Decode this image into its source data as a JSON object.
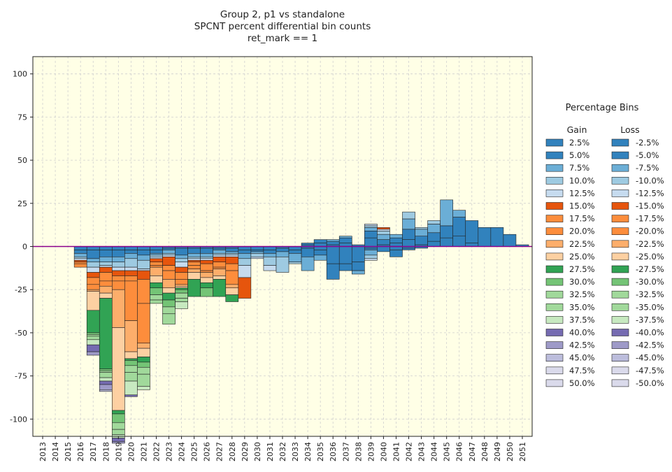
{
  "chart_data": {
    "type": "bar",
    "stacked": true,
    "title": [
      "Group 2,  p1 vs standalone",
      "SPCNT percent differential bin counts",
      "ret_mark == 1"
    ],
    "xlabel": "",
    "ylabel": "",
    "ylim": [
      -110,
      110
    ],
    "yticks": [
      100,
      75,
      50,
      25,
      0,
      -25,
      -50,
      -75,
      -100
    ],
    "grid": true,
    "legend_position": "right",
    "categories": [
      "2013",
      "2014",
      "2015",
      "2016",
      "2017",
      "2018",
      "2019",
      "2020",
      "2021",
      "2022",
      "2023",
      "2024",
      "2025",
      "2026",
      "2027",
      "2028",
      "2029",
      "2030",
      "2031",
      "2032",
      "2033",
      "2034",
      "2035",
      "2036",
      "2037",
      "2038",
      "2039",
      "2040",
      "2041",
      "2042",
      "2043",
      "2044",
      "2045",
      "2046",
      "2047",
      "2048",
      "2049",
      "2050",
      "2051"
    ],
    "bins": [
      {
        "gain": "2.5%",
        "loss": "-2.5%",
        "color": "#3182bd"
      },
      {
        "gain": "5.0%",
        "loss": "-5.0%",
        "color": "#3182bd"
      },
      {
        "gain": "7.5%",
        "loss": "-7.5%",
        "color": "#6baed6"
      },
      {
        "gain": "10.0%",
        "loss": "-10.0%",
        "color": "#9ecae1"
      },
      {
        "gain": "12.5%",
        "loss": "-12.5%",
        "color": "#c6dbef"
      },
      {
        "gain": "15.0%",
        "loss": "-15.0%",
        "color": "#e6550d"
      },
      {
        "gain": "17.5%",
        "loss": "-17.5%",
        "color": "#fd8d3c"
      },
      {
        "gain": "20.0%",
        "loss": "-20.0%",
        "color": "#fd8d3c"
      },
      {
        "gain": "22.5%",
        "loss": "-22.5%",
        "color": "#fdae6b"
      },
      {
        "gain": "25.0%",
        "loss": "-25.0%",
        "color": "#fdd0a2"
      },
      {
        "gain": "27.5%",
        "loss": "-27.5%",
        "color": "#31a354"
      },
      {
        "gain": "30.0%",
        "loss": "-30.0%",
        "color": "#74c476"
      },
      {
        "gain": "32.5%",
        "loss": "-32.5%",
        "color": "#a1d99b"
      },
      {
        "gain": "35.0%",
        "loss": "-35.0%",
        "color": "#a1d99b"
      },
      {
        "gain": "37.5%",
        "loss": "-37.5%",
        "color": "#c7e9c0"
      },
      {
        "gain": "40.0%",
        "loss": "-40.0%",
        "color": "#756bb1"
      },
      {
        "gain": "42.5%",
        "loss": "-42.5%",
        "color": "#9e9ac8"
      },
      {
        "gain": "45.0%",
        "loss": "-45.0%",
        "color": "#bcbddc"
      },
      {
        "gain": "47.5%",
        "loss": "-47.5%",
        "color": "#dadaeb"
      },
      {
        "gain": "50.0%",
        "loss": "-50.0%",
        "color": "#dadaeb"
      }
    ],
    "positive": [
      [],
      [],
      [],
      [],
      [],
      [],
      [],
      [],
      [],
      [],
      [],
      [],
      [],
      [],
      [],
      [],
      [],
      [],
      [],
      [],
      [],
      [
        1,
        1
      ],
      [
        2,
        2
      ],
      [
        1,
        2,
        1
      ],
      [
        2,
        3,
        1
      ],
      [
        1
      ],
      [
        5,
        4,
        2,
        1,
        1
      ],
      [
        1,
        3,
        3,
        2,
        1,
        1
      ],
      [
        2,
        3,
        2
      ],
      [
        4,
        6,
        6,
        4
      ],
      [
        1,
        5,
        4,
        1
      ],
      [
        3,
        5,
        5,
        2
      ],
      [
        5,
        7,
        15
      ],
      [
        6,
        11,
        4
      ],
      [
        2,
        13
      ],
      [
        11
      ],
      [
        11
      ],
      [
        7
      ],
      [
        1
      ]
    ],
    "negative": [
      [],
      [],
      [],
      [
        2,
        2,
        2,
        1,
        1,
        1,
        1,
        2
      ],
      [
        2,
        5,
        2,
        3,
        3,
        3,
        4,
        3,
        1,
        11,
        13,
        1,
        1,
        2,
        3,
        4,
        2
      ],
      [
        2,
        4,
        3,
        2,
        1,
        3,
        5,
        3,
        4,
        3,
        41,
        1,
        1,
        3,
        2,
        2,
        3,
        1
      ],
      [
        2,
        4,
        3,
        3,
        2,
        3,
        3,
        5,
        22,
        48,
        2,
        5,
        4,
        3,
        2,
        2,
        1
      ],
      [
        2,
        2,
        3,
        5,
        2,
        3,
        3,
        23,
        18,
        4,
        1,
        3,
        4,
        5,
        8,
        1
      ],
      [
        2,
        3,
        3,
        5,
        1,
        5,
        14,
        23,
        3,
        5,
        3,
        3,
        4,
        7,
        2
      ],
      [
        2,
        2,
        1,
        1,
        1,
        2,
        2,
        1,
        5,
        4,
        3,
        4,
        3,
        2
      ],
      [
        1,
        1,
        2,
        1,
        1,
        5,
        3,
        5,
        5,
        3,
        4,
        4,
        4,
        6
      ],
      [
        1,
        4,
        2,
        2,
        3,
        3,
        4,
        3,
        1,
        1,
        1,
        2,
        3,
        2,
        4
      ],
      [
        1,
        3,
        2,
        1,
        1,
        1,
        2,
        2,
        2,
        4,
        10
      ],
      [
        1,
        3,
        2,
        1,
        1,
        2,
        4,
        1,
        3,
        3,
        3,
        5
      ],
      [
        1,
        1,
        2,
        1,
        1,
        3,
        3,
        1,
        4,
        2,
        10
      ],
      [
        1,
        2,
        1,
        1,
        1,
        4,
        4,
        8,
        2,
        4,
        4
      ],
      [
        2,
        2,
        3,
        4,
        7,
        12
      ],
      [
        2,
        1,
        1,
        2,
        1
      ],
      [
        2,
        2,
        2,
        5,
        3
      ],
      [
        1,
        2,
        3,
        9
      ],
      [
        2,
        2,
        5,
        1
      ],
      [
        1,
        5,
        8
      ],
      [
        2,
        3,
        3
      ],
      [
        10,
        9
      ],
      [
        10,
        4
      ],
      [
        9,
        5,
        2
      ],
      [
        1,
        1,
        3,
        2,
        1
      ],
      [
        3
      ],
      [
        2,
        4
      ],
      [
        1,
        1
      ],
      [
        1
      ],
      [],
      [],
      [],
      [],
      [],
      [],
      [],
      [],
      [],
      []
    ]
  }
}
